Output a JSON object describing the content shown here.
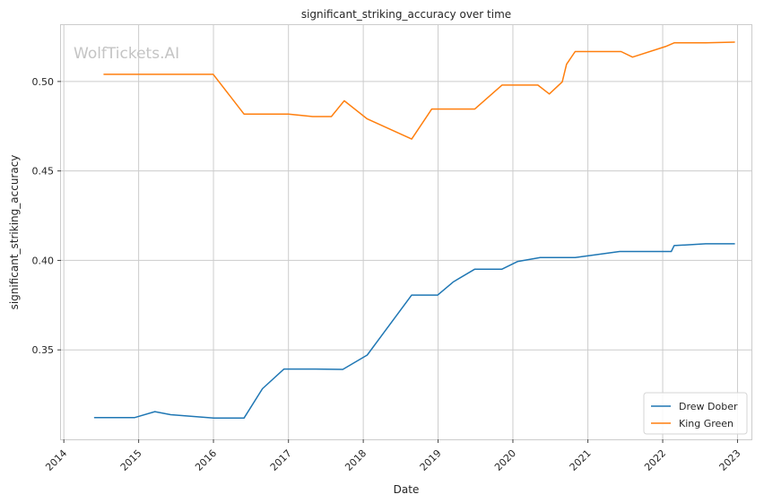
{
  "chart_data": {
    "type": "line",
    "title": "significant_striking_accuracy over time",
    "xlabel": "Date",
    "ylabel": "significant_striking_accuracy",
    "watermark": "WolfTickets.AI",
    "x_axis": {
      "type": "date",
      "range": [
        "2013-12-18",
        "2023-03-10"
      ],
      "ticks": [
        "2014",
        "2015",
        "2016",
        "2017",
        "2018",
        "2019",
        "2020",
        "2021",
        "2022",
        "2023"
      ],
      "tick_rotation": -45
    },
    "y_axis": {
      "range": [
        0.3,
        0.5315
      ],
      "ticks": [
        0.35,
        0.4,
        0.45,
        0.5
      ],
      "tick_labels": [
        "0.35",
        "0.40",
        "0.45",
        "0.50"
      ]
    },
    "grid": true,
    "legend": {
      "position": "bottom-right"
    },
    "series": [
      {
        "name": "Drew Dober",
        "color": "#1f77b4",
        "points": [
          [
            "2014-05-31",
            0.3122
          ],
          [
            "2014-12-13",
            0.3122
          ],
          [
            "2015-03-21",
            0.3155
          ],
          [
            "2015-06-06",
            0.3138
          ],
          [
            "2016-01-02",
            0.3119
          ],
          [
            "2016-05-29",
            0.3119
          ],
          [
            "2016-08-27",
            0.3283
          ],
          [
            "2016-12-10",
            0.3393
          ],
          [
            "2017-05-13",
            0.3393
          ],
          [
            "2017-09-23",
            0.3391
          ],
          [
            "2018-01-20",
            0.3471
          ],
          [
            "2018-08-25",
            0.3806
          ],
          [
            "2018-12-30",
            0.3806
          ],
          [
            "2019-03-16",
            0.388
          ],
          [
            "2019-06-29",
            0.3951
          ],
          [
            "2019-11-09",
            0.3951
          ],
          [
            "2020-01-25",
            0.3994
          ],
          [
            "2020-05-13",
            0.4016
          ],
          [
            "2020-10-31",
            0.4016
          ],
          [
            "2021-06-05",
            0.405
          ],
          [
            "2022-02-12",
            0.405
          ],
          [
            "2022-02-26",
            0.4083
          ],
          [
            "2022-07-30",
            0.4093
          ],
          [
            "2022-12-17",
            0.4093
          ]
        ]
      },
      {
        "name": "King Green",
        "color": "#ff7f0e",
        "points": [
          [
            "2014-07-16",
            0.504
          ],
          [
            "2015-12-31",
            0.504
          ],
          [
            "2016-05-29",
            0.4818
          ],
          [
            "2016-12-31",
            0.4818
          ],
          [
            "2017-04-29",
            0.4804
          ],
          [
            "2017-07-29",
            0.4804
          ],
          [
            "2017-09-30",
            0.4892
          ],
          [
            "2018-01-20",
            0.4791
          ],
          [
            "2018-08-25",
            0.4678
          ],
          [
            "2018-12-01",
            0.4846
          ],
          [
            "2019-06-29",
            0.4846
          ],
          [
            "2019-11-09",
            0.498
          ],
          [
            "2020-05-02",
            0.498
          ],
          [
            "2020-06-27",
            0.493
          ],
          [
            "2020-08-29",
            0.4998
          ],
          [
            "2020-09-19",
            0.5096
          ],
          [
            "2020-10-31",
            0.5167
          ],
          [
            "2021-06-12",
            0.5167
          ],
          [
            "2021-08-07",
            0.5136
          ],
          [
            "2022-01-15",
            0.5195
          ],
          [
            "2022-02-26",
            0.5216
          ],
          [
            "2022-07-30",
            0.5216
          ],
          [
            "2022-12-17",
            0.522
          ]
        ]
      }
    ]
  }
}
